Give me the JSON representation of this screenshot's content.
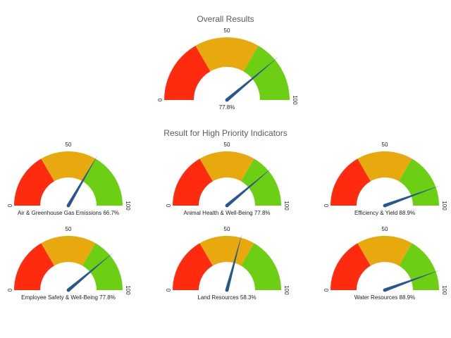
{
  "overall_title": "Overall Results",
  "priority_title": "Result for High Priority Indicators",
  "band_colors": {
    "low": "#ff2b0e",
    "mid": "#e8a90e",
    "high": "#6ccf14",
    "needle": "#2a5690"
  },
  "chart_data": [
    {
      "type": "gauge",
      "title": "Overall Results",
      "label": "77.8%",
      "value": 77.8,
      "range": [
        0,
        100
      ],
      "tick_labels": [
        "0",
        "50",
        "100"
      ],
      "bands": [
        [
          0,
          33.3
        ],
        [
          33.3,
          66.7
        ],
        [
          66.7,
          100
        ]
      ]
    },
    {
      "type": "gauge",
      "group_title": "Result for High Priority Indicators",
      "label": "Air & Greenhouse Gas Emissions 66.7%",
      "value": 66.7,
      "range": [
        0,
        100
      ],
      "tick_labels": [
        "0",
        "50",
        "100"
      ],
      "bands": [
        [
          0,
          33.3
        ],
        [
          33.3,
          66.7
        ],
        [
          66.7,
          100
        ]
      ]
    },
    {
      "type": "gauge",
      "label": "Animal Health & Well-Being 77.8%",
      "value": 77.8,
      "range": [
        0,
        100
      ],
      "tick_labels": [
        "0",
        "50",
        "100"
      ],
      "bands": [
        [
          0,
          33.3
        ],
        [
          33.3,
          66.7
        ],
        [
          66.7,
          100
        ]
      ]
    },
    {
      "type": "gauge",
      "label": "Efficiency & Yield 88.9%",
      "value": 88.9,
      "range": [
        0,
        100
      ],
      "tick_labels": [
        "0",
        "50",
        "100"
      ],
      "bands": [
        [
          0,
          33.3
        ],
        [
          33.3,
          66.7
        ],
        [
          66.7,
          100
        ]
      ]
    },
    {
      "type": "gauge",
      "label": "Employee Safety & Well-Being 77.8%",
      "value": 77.8,
      "range": [
        0,
        100
      ],
      "tick_labels": [
        "0",
        "50",
        "100"
      ],
      "bands": [
        [
          0,
          33.3
        ],
        [
          33.3,
          66.7
        ],
        [
          66.7,
          100
        ]
      ]
    },
    {
      "type": "gauge",
      "label": "Land Resources 58.3%",
      "value": 58.3,
      "range": [
        0,
        100
      ],
      "tick_labels": [
        "0",
        "50",
        "100"
      ],
      "bands": [
        [
          0,
          33.3
        ],
        [
          33.3,
          66.7
        ],
        [
          66.7,
          100
        ]
      ]
    },
    {
      "type": "gauge",
      "label": "Water Resources 88.9%",
      "value": 88.9,
      "range": [
        0,
        100
      ],
      "tick_labels": [
        "0",
        "50",
        "100"
      ],
      "bands": [
        [
          0,
          33.3
        ],
        [
          33.3,
          66.7
        ],
        [
          66.7,
          100
        ]
      ]
    }
  ]
}
